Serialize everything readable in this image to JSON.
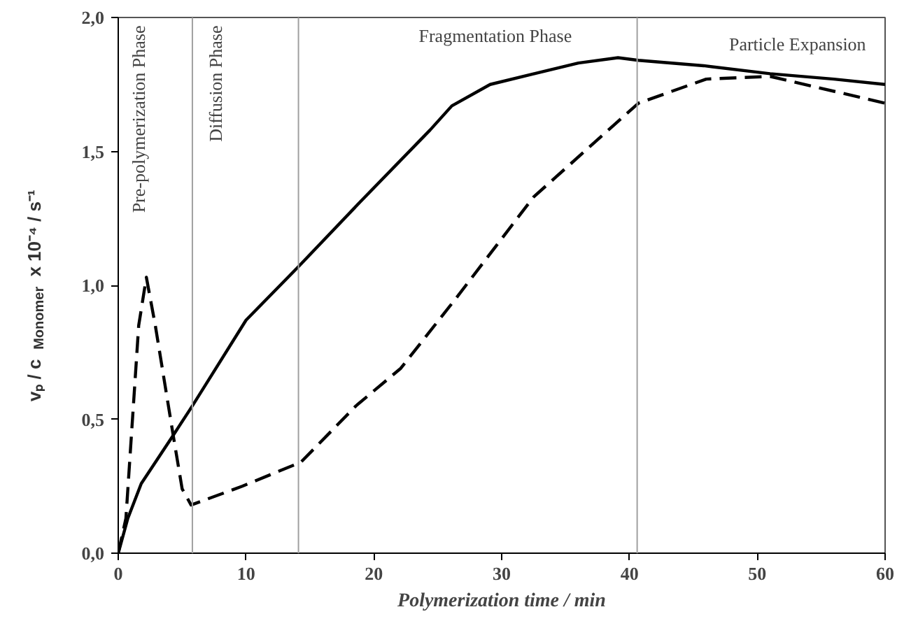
{
  "chart_data": {
    "type": "line",
    "xlabel": "Polymerization time / min",
    "ylabel": "vₚ / c$_{Monomer}$ x 10⁻⁴ / s⁻¹",
    "xlim": [
      0,
      60
    ],
    "ylim": [
      0,
      2
    ],
    "xticks": [
      0,
      10,
      20,
      30,
      40,
      50,
      60
    ],
    "yticks": [
      {
        "value": 0,
        "label": "0,0"
      },
      {
        "value": 0.5,
        "label": "0,5"
      },
      {
        "value": 1,
        "label": "1,0"
      },
      {
        "value": 1.5,
        "label": "1,5"
      },
      {
        "value": 2,
        "label": "2,0"
      }
    ],
    "grid": false,
    "marker": "none",
    "series": [
      {
        "color": "#000000",
        "line_style": "solid",
        "x": [
          0,
          0.75,
          1.8,
          4.3,
          5.8,
          10,
          14.1,
          18.9,
          24.4,
          26.1,
          29.1,
          36,
          39.1,
          40.7,
          45.8,
          51,
          56,
          60
        ],
        "values": [
          0,
          0.13,
          0.26,
          0.44,
          0.55,
          0.87,
          1.07,
          1.31,
          1.58,
          1.67,
          1.75,
          1.83,
          1.85,
          1.84,
          1.82,
          1.79,
          1.77,
          1.75
        ]
      },
      {
        "color": "#000000",
        "line_style": "dashed",
        "x": [
          0,
          0.6,
          1.6,
          2.2,
          2.9,
          4.3,
          5,
          5.7,
          9.7,
          14.3,
          18.6,
          22.1,
          26.4,
          32.5,
          40.7,
          46,
          51,
          60
        ],
        "values": [
          0,
          0.13,
          0.85,
          1.03,
          0.85,
          0.44,
          0.24,
          0.18,
          0.25,
          0.34,
          0.55,
          0.69,
          0.95,
          1.33,
          1.68,
          1.77,
          1.78,
          1.68
        ]
      }
    ],
    "ref_lines": [
      {
        "axis": "x",
        "value": 5.8,
        "color": "#a0a0a0"
      },
      {
        "axis": "x",
        "value": 14.1,
        "color": "#a0a0a0"
      },
      {
        "axis": "x",
        "value": 40.6,
        "color": "#a0a0a0"
      }
    ],
    "annotations": [
      "Pre-polymerization Phase",
      "Diffusion Phase",
      "Fragmentation Phase",
      "Particle Expansion"
    ]
  }
}
